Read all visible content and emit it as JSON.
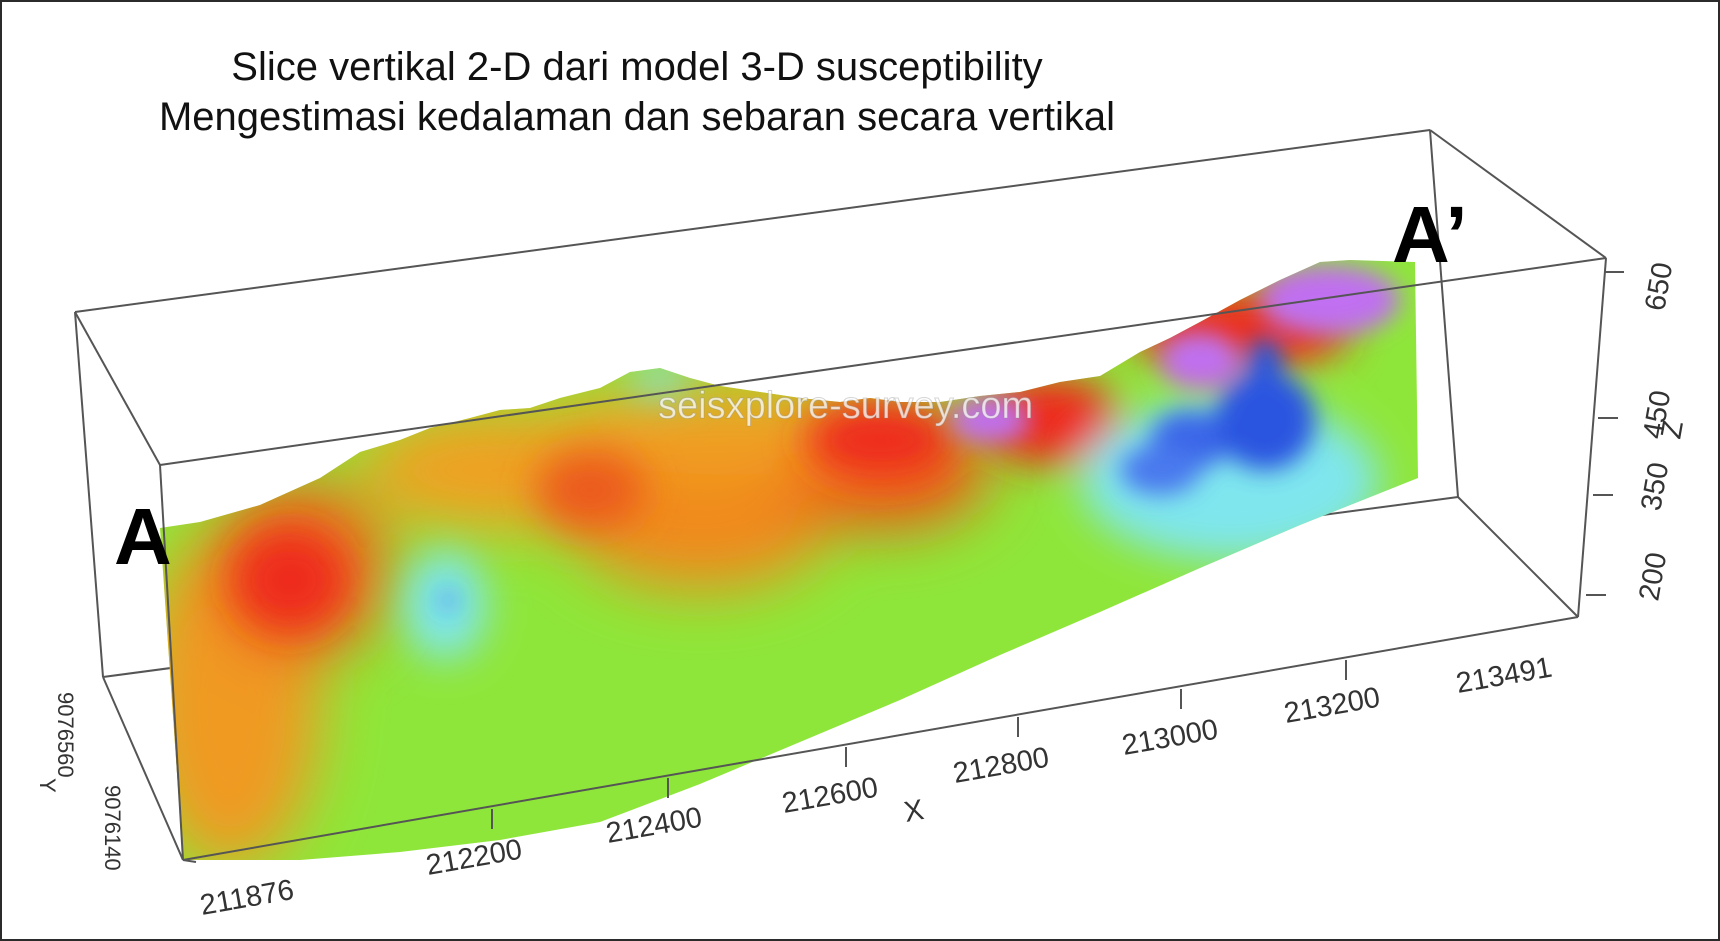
{
  "title": {
    "line1": "Slice vertikal 2-D dari model 3-D susceptibility",
    "line2": "Mengestimasi kedalaman dan sebaran secara vertikal"
  },
  "section_labels": {
    "start": "A",
    "end": "A’"
  },
  "watermark": "seisxplore-survey.com",
  "axes": {
    "x": {
      "label": "X",
      "ticks": [
        "211876",
        "212200",
        "212400",
        "212600",
        "212800",
        "213000",
        "213200",
        "213491"
      ]
    },
    "y": {
      "label": "Y",
      "ticks": [
        "9076560",
        "9076140"
      ]
    },
    "z": {
      "label": "Z",
      "ticks": [
        "200",
        "350",
        "450",
        "650"
      ]
    }
  },
  "colors": {
    "box": "#555555",
    "low": "#2a55e0",
    "mid_low": "#7fe6ee",
    "mid": "#8fe63a",
    "mid_high": "#f0a020",
    "high": "#ee2a1a",
    "very_high": "#c070f0"
  }
}
